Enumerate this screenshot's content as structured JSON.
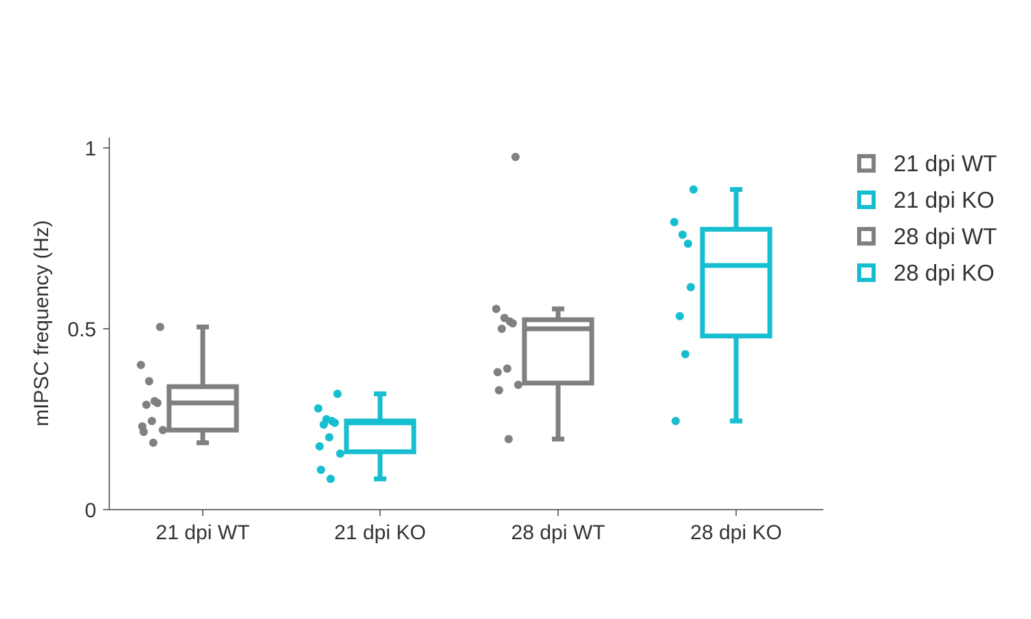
{
  "chart_data": {
    "type": "box",
    "title": "",
    "xlabel": "",
    "ylabel": "mIPSC frequency (Hz)",
    "ylim": [
      0,
      1.05
    ],
    "yticks": [
      {
        "value": 0,
        "label": "0"
      },
      {
        "value": 0.5,
        "label": "0.5"
      },
      {
        "value": 1,
        "label": "1"
      }
    ],
    "grid": false,
    "legend": {
      "position": "top-right"
    },
    "categories": [
      "21 dpi WT",
      "21 dpi KO",
      "28 dpi WT",
      "28 dpi KO"
    ],
    "series": [
      {
        "name": "21 dpi WT",
        "color": "#808080",
        "box": {
          "whisker_low": 0.185,
          "q1": 0.22,
          "median": 0.295,
          "q3": 0.34,
          "whisker_high": 0.505
        },
        "points": [
          0.505,
          0.4,
          0.355,
          0.3,
          0.295,
          0.29,
          0.245,
          0.23,
          0.22,
          0.215,
          0.185
        ]
      },
      {
        "name": "21 dpi KO",
        "color": "#17becf",
        "box": {
          "whisker_low": 0.085,
          "q1": 0.16,
          "median": 0.24,
          "q3": 0.245,
          "whisker_high": 0.32
        },
        "points": [
          0.32,
          0.28,
          0.25,
          0.245,
          0.24,
          0.235,
          0.2,
          0.175,
          0.155,
          0.11,
          0.085
        ]
      },
      {
        "name": "28 dpi WT",
        "color": "#808080",
        "box": {
          "whisker_low": 0.195,
          "q1": 0.35,
          "median": 0.5,
          "q3": 0.525,
          "whisker_high": 0.555
        },
        "points": [
          0.975,
          0.555,
          0.53,
          0.52,
          0.515,
          0.5,
          0.39,
          0.38,
          0.345,
          0.33,
          0.195
        ]
      },
      {
        "name": "28 dpi KO",
        "color": "#17becf",
        "box": {
          "whisker_low": 0.245,
          "q1": 0.48,
          "median": 0.675,
          "q3": 0.775,
          "whisker_high": 0.885
        },
        "points": [
          0.885,
          0.795,
          0.76,
          0.735,
          0.615,
          0.535,
          0.43,
          0.245
        ]
      }
    ]
  }
}
